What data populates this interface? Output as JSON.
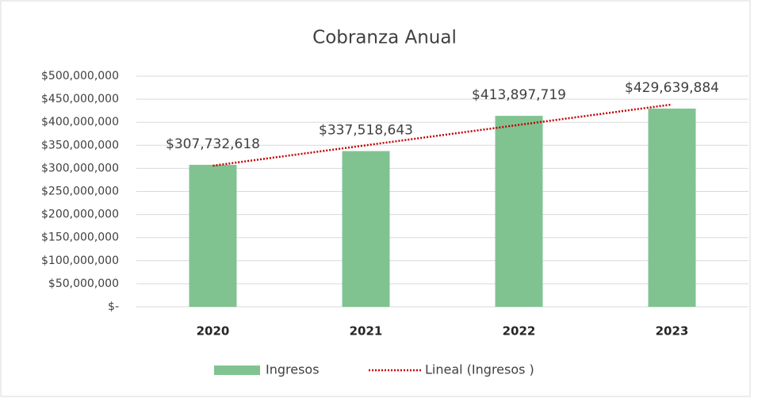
{
  "chart_data": {
    "type": "bar",
    "title": "Cobranza Anual",
    "categories": [
      "2020",
      "2021",
      "2022",
      "2023"
    ],
    "series": [
      {
        "name": "Ingresos",
        "type": "bar",
        "color": "#80c391",
        "values": [
          307732618,
          337518643,
          413897719,
          429639884
        ],
        "value_labels": [
          "$307,732,618",
          "$337,518,643",
          "$413,897,719",
          "$429,639,884"
        ]
      },
      {
        "name": "Lineal (Ingresos )",
        "type": "line",
        "color": "#c00000",
        "dash": "dotted",
        "values": [
          305880000,
          350090000,
          394300000,
          438510000
        ]
      }
    ],
    "ylim": [
      0,
      500000000
    ],
    "yticks": [
      {
        "value": 0,
        "label": "$-"
      },
      {
        "value": 50000000,
        "label": "$50,000,000"
      },
      {
        "value": 100000000,
        "label": "$100,000,000"
      },
      {
        "value": 150000000,
        "label": "$150,000,000"
      },
      {
        "value": 200000000,
        "label": "$200,000,000"
      },
      {
        "value": 250000000,
        "label": "$250,000,000"
      },
      {
        "value": 300000000,
        "label": "$300,000,000"
      },
      {
        "value": 350000000,
        "label": "$350,000,000"
      },
      {
        "value": 400000000,
        "label": "$400,000,000"
      },
      {
        "value": 450000000,
        "label": "$450,000,000"
      },
      {
        "value": 500000000,
        "label": "$500,000,000"
      }
    ],
    "grid": true,
    "legend": "bottom"
  }
}
